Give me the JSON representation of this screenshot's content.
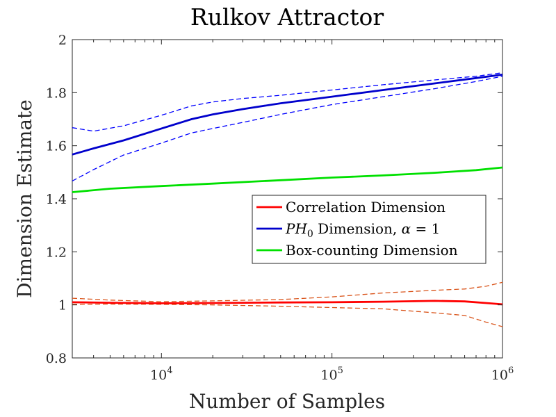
{
  "chart_data": {
    "type": "line",
    "title": "Rulkov Attractor",
    "xlabel": "Number of Samples",
    "ylabel": "Dimension Estimate",
    "xscale": "log",
    "xlim": [
      3000,
      1000000
    ],
    "ylim": [
      0.8,
      2.0
    ],
    "grid": false,
    "legend_position": "center-right",
    "x_ticks": [
      {
        "value": 10000,
        "base": "10",
        "exp": "4"
      },
      {
        "value": 100000,
        "base": "10",
        "exp": "5"
      },
      {
        "value": 1000000,
        "base": "10",
        "exp": "6"
      }
    ],
    "y_ticks": [
      {
        "value": 0.8,
        "label": "0.8"
      },
      {
        "value": 1.0,
        "label": "1"
      },
      {
        "value": 1.2,
        "label": "1.2"
      },
      {
        "value": 1.4,
        "label": "1.4"
      },
      {
        "value": 1.6,
        "label": "1.6"
      },
      {
        "value": 1.8,
        "label": "1.8"
      },
      {
        "value": 2.0,
        "label": "2"
      }
    ],
    "series": [
      {
        "id": "corr",
        "name": "Correlation Dimension",
        "legend_label": "Correlation Dimension",
        "color": "#ff0000",
        "x": [
          3000,
          5000,
          10000,
          20000,
          50000,
          100000,
          200000,
          400000,
          600000,
          800000,
          1000000
        ],
        "values": [
          1.01,
          1.008,
          1.006,
          1.007,
          1.009,
          1.01,
          1.012,
          1.015,
          1.013,
          1.007,
          1.002
        ],
        "band_upper": [
          1.025,
          1.018,
          1.012,
          1.015,
          1.02,
          1.03,
          1.045,
          1.055,
          1.06,
          1.07,
          1.085
        ],
        "band_lower": [
          1.002,
          1.003,
          1.002,
          1.0,
          0.995,
          0.99,
          0.985,
          0.97,
          0.96,
          0.935,
          0.918
        ],
        "band_color": "#d95319"
      },
      {
        "id": "ph0",
        "name": "PH0 Dimension, alpha = 1",
        "legend_label_main": "PH",
        "legend_label_sub": "0",
        "legend_label_rest": " Dimension, ",
        "legend_label_alpha": "α",
        "legend_label_end": " = 1",
        "color": "#0000cc",
        "x": [
          3000,
          4000,
          6000,
          10000,
          15000,
          20000,
          30000,
          50000,
          100000,
          200000,
          400000,
          700000,
          1000000
        ],
        "values": [
          1.567,
          1.59,
          1.62,
          1.665,
          1.7,
          1.718,
          1.738,
          1.76,
          1.785,
          1.81,
          1.835,
          1.855,
          1.868
        ],
        "band_upper": [
          1.668,
          1.655,
          1.675,
          1.715,
          1.75,
          1.765,
          1.778,
          1.79,
          1.81,
          1.83,
          1.848,
          1.862,
          1.875
        ],
        "band_lower": [
          1.467,
          1.51,
          1.565,
          1.61,
          1.648,
          1.665,
          1.688,
          1.718,
          1.755,
          1.785,
          1.815,
          1.842,
          1.862
        ],
        "band_color": "#0000ff"
      },
      {
        "id": "box",
        "name": "Box-counting Dimension",
        "legend_label": "Box-counting Dimension",
        "color": "#00e000",
        "x": [
          3000,
          5000,
          10000,
          20000,
          50000,
          100000,
          200000,
          400000,
          700000,
          1000000
        ],
        "values": [
          1.425,
          1.438,
          1.448,
          1.457,
          1.47,
          1.48,
          1.488,
          1.498,
          1.508,
          1.518
        ]
      }
    ]
  }
}
